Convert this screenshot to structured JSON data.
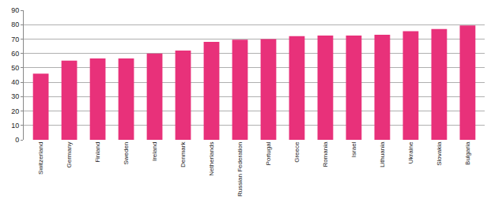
{
  "chart_data": {
    "type": "bar",
    "categories": [
      "Switzerland",
      "Germany",
      "Finland",
      "Sweden",
      "Ireland",
      "Denmark",
      "Netherlands",
      "Russian Federation",
      "Portugal",
      "Greece",
      "Romania",
      "Israel",
      "Lithuania",
      "Ukraine",
      "Slovakia",
      "Bulgaria"
    ],
    "values": [
      46,
      55,
      56.5,
      56.5,
      60,
      62,
      68,
      69.5,
      70,
      72,
      72.5,
      72.5,
      73,
      75.5,
      77,
      79.5
    ],
    "color": "#e8317a",
    "ylim": [
      0,
      90
    ],
    "yticks": [
      0,
      10,
      20,
      30,
      40,
      50,
      60,
      70,
      80,
      90
    ],
    "grid": true
  }
}
